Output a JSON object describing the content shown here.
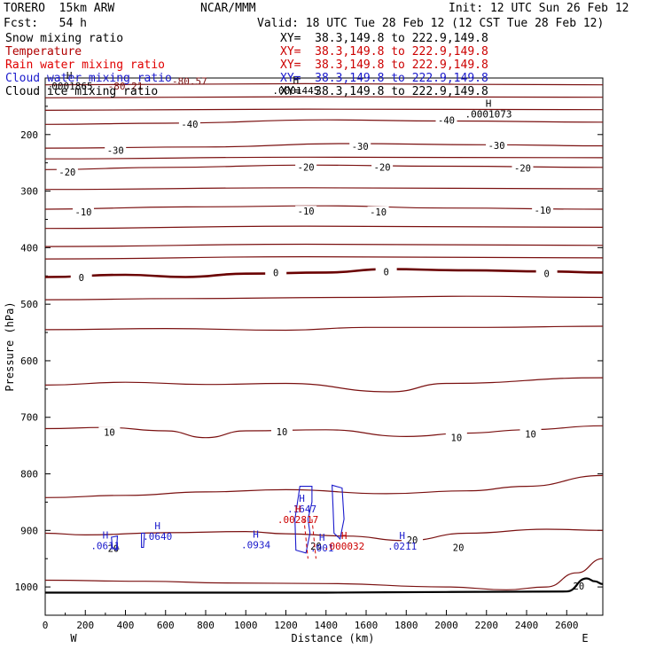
{
  "header": {
    "model": "TORERO  15km ARW",
    "org": "NCAR/MMM",
    "init": "Init: 12 UTC Sun 26 Feb 12",
    "fcst": "Fcst:   54 h",
    "valid": "Valid: 18 UTC Tue 28 Feb 12 (12 CST Tue 28 Feb 12)"
  },
  "legend": [
    {
      "label": "Snow mixing ratio",
      "color": "#000000",
      "xy": "XY=  38.3,149.8 to 222.9,149.8"
    },
    {
      "label": "Temperature",
      "color": "#b00000",
      "xy": "XY=  38.3,149.8 to 222.9,149.8"
    },
    {
      "label": "Rain water mixing ratio",
      "color": "#e00000",
      "xy": "XY=  38.3,149.8 to 222.9,149.8"
    },
    {
      "label": "Cloud water mixing ratio",
      "color": "#1a1acc",
      "xy": "XY=  38.3,149.8 to 222.9,149.8"
    },
    {
      "label": "Cloud ice mixing ratio",
      "color": "#000000",
      "xy": "XY=  38.3,149.8 to 222.9,149.8"
    }
  ],
  "colors": {
    "temperature": "#7a1010",
    "zero_isotherm": "#6a0000",
    "cloud_water": "#1a1acc",
    "rain_water": "#cc0000",
    "ground": "#000000"
  },
  "chart_data": {
    "type": "contour",
    "xlabel": "Distance (km)",
    "ylabel": "Pressure (hPa)",
    "xlim": [
      0,
      2780
    ],
    "ylim": [
      1050,
      100
    ],
    "x_ticks": [
      0,
      200,
      400,
      600,
      800,
      1000,
      1200,
      1400,
      1600,
      1800,
      2000,
      2200,
      2400,
      2600
    ],
    "y_ticks": [
      200,
      300,
      400,
      500,
      600,
      700,
      800,
      900,
      1000
    ],
    "left_end_label": "W",
    "right_end_label": "E",
    "temperature_contours": [
      {
        "label": "-40",
        "points": [
          [
            0,
            182
          ],
          [
            600,
            180
          ],
          [
            1400,
            174
          ],
          [
            2000,
            176
          ],
          [
            2780,
            178
          ]
        ],
        "labels_at": [
          [
            720,
            183
          ],
          [
            2000,
            176
          ]
        ]
      },
      {
        "label": "-30",
        "points": [
          [
            0,
            224
          ],
          [
            800,
            222
          ],
          [
            1500,
            216
          ],
          [
            2200,
            218
          ],
          [
            2780,
            220
          ]
        ],
        "labels_at": [
          [
            350,
            229
          ],
          [
            1570,
            222
          ],
          [
            2250,
            221
          ]
        ]
      },
      {
        "label": "-20",
        "points": [
          [
            0,
            262
          ],
          [
            600,
            258
          ],
          [
            1300,
            254
          ],
          [
            2000,
            256
          ],
          [
            2780,
            258
          ]
        ],
        "labels_at": [
          [
            110,
            268
          ],
          [
            1300,
            259
          ],
          [
            1680,
            259
          ],
          [
            2380,
            261
          ]
        ]
      },
      {
        "label": "-10",
        "points": [
          [
            0,
            332
          ],
          [
            700,
            328
          ],
          [
            1400,
            326
          ],
          [
            2000,
            330
          ],
          [
            2780,
            332
          ]
        ],
        "labels_at": [
          [
            190,
            338
          ],
          [
            1300,
            337
          ],
          [
            1660,
            338
          ],
          [
            2480,
            335
          ]
        ]
      },
      {
        "label": "0",
        "points": [
          [
            0,
            452
          ],
          [
            400,
            448
          ],
          [
            700,
            452
          ],
          [
            1000,
            446
          ],
          [
            1400,
            444
          ],
          [
            1700,
            438
          ],
          [
            2100,
            440
          ],
          [
            2500,
            442
          ],
          [
            2780,
            444
          ]
        ],
        "labels_at": [
          [
            180,
            454
          ],
          [
            1150,
            446
          ],
          [
            1700,
            444
          ],
          [
            2500,
            447
          ]
        ]
      },
      {
        "label": "10",
        "points": [
          [
            0,
            720
          ],
          [
            300,
            718
          ],
          [
            600,
            724
          ],
          [
            800,
            736
          ],
          [
            1000,
            724
          ],
          [
            1400,
            722
          ],
          [
            1800,
            734
          ],
          [
            2100,
            728
          ],
          [
            2400,
            722
          ],
          [
            2780,
            715
          ]
        ],
        "labels_at": [
          [
            320,
            728
          ],
          [
            1180,
            727
          ],
          [
            2050,
            737
          ],
          [
            2420,
            731
          ]
        ]
      },
      {
        "label": "20",
        "points": [
          [
            0,
            905
          ],
          [
            200,
            908
          ],
          [
            600,
            904
          ],
          [
            1000,
            902
          ],
          [
            1200,
            906
          ],
          [
            1500,
            910
          ],
          [
            1800,
            918
          ],
          [
            2100,
            905
          ],
          [
            2500,
            898
          ],
          [
            2780,
            900
          ]
        ],
        "labels_at": [
          [
            340,
            933
          ],
          [
            1350,
            929
          ],
          [
            1830,
            918
          ],
          [
            2060,
            932
          ],
          [
            2660,
            1000
          ]
        ]
      }
    ],
    "temperature_unlabeled_contours": [
      [
        [
          0,
          112
        ],
        [
          1300,
          110
        ],
        [
          2780,
          112
        ]
      ],
      [
        [
          0,
          135
        ],
        [
          1300,
          133
        ],
        [
          2780,
          134
        ]
      ],
      [
        [
          0,
          157
        ],
        [
          1300,
          155
        ],
        [
          2780,
          156
        ]
      ],
      [
        [
          0,
          243
        ],
        [
          1300,
          240
        ],
        [
          2780,
          241
        ]
      ],
      [
        [
          0,
          297
        ],
        [
          1300,
          294
        ],
        [
          2780,
          296
        ]
      ],
      [
        [
          0,
          366
        ],
        [
          1300,
          362
        ],
        [
          2780,
          364
        ]
      ],
      [
        [
          0,
          398
        ],
        [
          1300,
          394
        ],
        [
          2780,
          396
        ]
      ],
      [
        [
          0,
          420
        ],
        [
          1300,
          416
        ],
        [
          2780,
          418
        ]
      ],
      [
        [
          0,
          492
        ],
        [
          700,
          490
        ],
        [
          1500,
          488
        ],
        [
          2100,
          486
        ],
        [
          2780,
          488
        ]
      ],
      [
        [
          0,
          545
        ],
        [
          600,
          543
        ],
        [
          1200,
          546
        ],
        [
          1600,
          541
        ],
        [
          2200,
          541
        ],
        [
          2780,
          539
        ]
      ],
      [
        [
          0,
          643
        ],
        [
          400,
          638
        ],
        [
          800,
          642
        ],
        [
          1200,
          640
        ],
        [
          1720,
          655
        ],
        [
          2000,
          640
        ],
        [
          2780,
          630
        ]
      ],
      [
        [
          0,
          842
        ],
        [
          400,
          838
        ],
        [
          800,
          832
        ],
        [
          1200,
          828
        ],
        [
          1700,
          835
        ],
        [
          2100,
          830
        ],
        [
          2400,
          822
        ],
        [
          2780,
          803
        ]
      ],
      [
        [
          0,
          988
        ],
        [
          500,
          990
        ],
        [
          900,
          993
        ],
        [
          1400,
          994
        ],
        [
          2000,
          1000
        ],
        [
          2300,
          1005
        ],
        [
          2500,
          1000
        ],
        [
          2650,
          975
        ],
        [
          2780,
          950
        ]
      ]
    ],
    "h_markers": [
      {
        "value": ".0001865",
        "x": 120,
        "p": 120,
        "color": "#000000"
      },
      {
        "value": ".0001445",
        "x": 1250,
        "p": 128,
        "color": "#000000"
      },
      {
        "value": ".0001073",
        "x": 2210,
        "p": 170,
        "color": "#000000"
      },
      {
        "value": ".0611",
        "x": 300,
        "p": 933,
        "color": "#1a1acc"
      },
      {
        "value": ".0640",
        "x": 560,
        "p": 917,
        "color": "#1a1acc"
      },
      {
        "value": ".0934",
        "x": 1050,
        "p": 932,
        "color": "#1a1acc"
      },
      {
        "value": ".1647",
        "x": 1280,
        "p": 868,
        "color": "#1a1acc"
      },
      {
        "value": ".002817",
        "x": 1260,
        "p": 887,
        "color": "#cc0000"
      },
      {
        "value": ".001",
        "x": 1380,
        "p": 937,
        "color": "#1a1acc"
      },
      {
        "value": ".000032",
        "x": 1490,
        "p": 934,
        "color": "#cc0000"
      },
      {
        "value": ".0211",
        "x": 1780,
        "p": 934,
        "color": "#1a1acc"
      }
    ],
    "top_annotations": [
      {
        "text": "-80.21",
        "x": 400,
        "p": 120
      },
      {
        "text": "-80.57",
        "x": 720,
        "p": 112
      }
    ]
  }
}
